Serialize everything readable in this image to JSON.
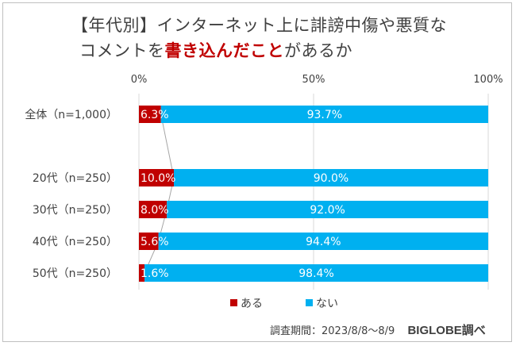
{
  "title": {
    "line1": "【年代別】インターネット上に誹謗中傷や悪質な",
    "line2_pre": "コメントを",
    "line2_highlight": "書き込んだこと",
    "line2_post": "があるか"
  },
  "footer": {
    "survey": "調査期間：2023/8/8～8/9",
    "brand": "BIGLOBE調べ"
  },
  "colors": {
    "aru": "#c00000",
    "nai": "#00b0f0",
    "gap_line": "#a6a6a6",
    "grid": "#d9d9d9",
    "text": "#404040"
  },
  "chart_data": {
    "type": "bar",
    "orientation": "horizontal",
    "stacked": "percent",
    "categories": [
      "全体（n=1,000）",
      "20代（n=250）",
      "30代（n=250）",
      "40代（n=250）",
      "50代（n=250）"
    ],
    "series": [
      {
        "name": "ある",
        "values": [
          6.3,
          10.0,
          8.0,
          5.6,
          1.6
        ],
        "labels": [
          "6.3%",
          "10.0%",
          "8.0%",
          "5.6%",
          "1.6%"
        ]
      },
      {
        "name": "ない",
        "values": [
          93.7,
          90.0,
          92.0,
          94.4,
          98.4
        ],
        "labels": [
          "93.7%",
          "90.0%",
          "92.0%",
          "94.4%",
          "98.4%"
        ]
      }
    ],
    "xlim": [
      0,
      100
    ],
    "ticks": [
      "0%",
      "50%",
      "100%"
    ],
    "tick_values": [
      0,
      50,
      100
    ],
    "grid": true,
    "legend_position": "bottom"
  }
}
